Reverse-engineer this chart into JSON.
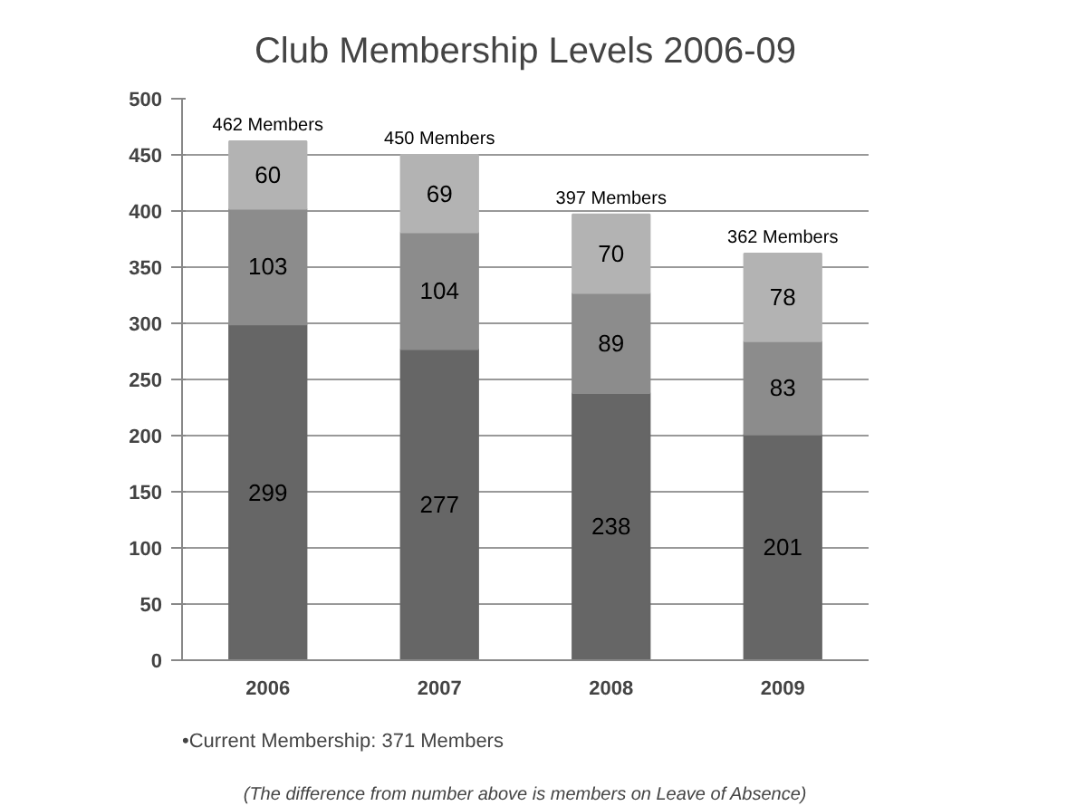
{
  "chart_data": {
    "type": "bar",
    "stacked": true,
    "title": "Club Membership Levels 2006-09",
    "categories": [
      "2006",
      "2007",
      "2008",
      "2009"
    ],
    "series": [
      {
        "color": "#666666",
        "values": [
          299,
          277,
          238,
          201
        ]
      },
      {
        "color": "#8c8c8c",
        "values": [
          103,
          104,
          89,
          83
        ]
      },
      {
        "color": "#b3b3b3",
        "values": [
          60,
          69,
          70,
          78
        ]
      }
    ],
    "data_labels": true,
    "totals": [
      "462 Members",
      "450 Members",
      "397 Members",
      "362 Members"
    ],
    "ylim": [
      0,
      500
    ],
    "yticks": [
      0,
      50,
      100,
      150,
      200,
      250,
      300,
      350,
      400,
      450,
      500
    ],
    "grid": "y",
    "annotations": [
      "•Current Membership:        371 Members",
      "(The difference from number above is members on Leave of Absence)"
    ]
  }
}
